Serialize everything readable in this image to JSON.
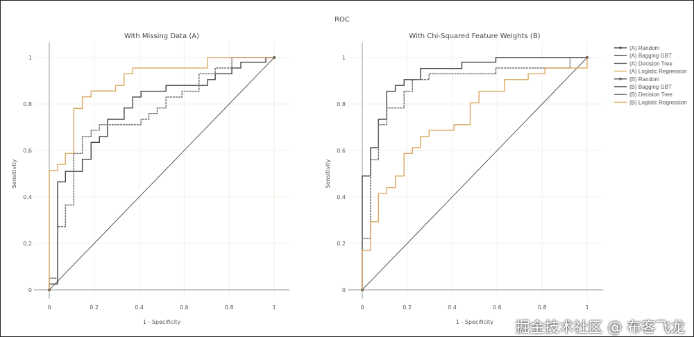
{
  "chart_data": [
    {
      "type": "line",
      "title": "With Missing Data (A)",
      "xlabel": "1 - Specificity",
      "ylabel": "Sensitivity",
      "xlim": [
        0,
        1
      ],
      "ylim": [
        0,
        1
      ],
      "xticks": [
        "0",
        "0.2",
        "0.4",
        "0.6",
        "0.8",
        "1"
      ],
      "yticks": [
        "0",
        "0.2",
        "0.4",
        "0.6",
        "0.8",
        "1"
      ],
      "grid": true,
      "series": [
        {
          "name": "(A) Random",
          "color": "#555555",
          "markers": true,
          "x": [
            0,
            1
          ],
          "y": [
            0,
            1
          ]
        },
        {
          "name": "(A) Bagging GBT",
          "color": "#444444",
          "x": [
            0,
            0.037,
            0.037,
            0.072,
            0.109,
            0.147,
            0.186,
            0.223,
            0.259,
            0.333,
            0.371,
            0.408,
            0.519,
            0.704,
            0.738,
            0.812,
            0.852,
            0.963,
            1
          ],
          "y": [
            0.025,
            0.025,
            0.415,
            0.465,
            0.51,
            0.51,
            0.562,
            0.635,
            0.66,
            0.734,
            0.783,
            0.83,
            0.855,
            0.88,
            0.905,
            0.93,
            0.955,
            0.98,
            1
          ]
        },
        {
          "name": "(A) Decision Tree",
          "color": "#666666",
          "x": [
            0,
            0.037,
            0.037,
            0.072,
            0.109,
            0.147,
            0.186,
            0.223,
            0.408,
            0.443,
            0.48,
            0.519,
            0.59,
            0.666,
            0.738,
            0.812,
            0.924,
            1
          ],
          "y": [
            0.05,
            0.05,
            0.195,
            0.272,
            0.365,
            0.587,
            0.66,
            0.687,
            0.711,
            0.734,
            0.759,
            0.783,
            0.83,
            0.855,
            0.93,
            0.955,
            1,
            1
          ]
        },
        {
          "name": "(A) Logistic Regression",
          "color": "#d9a860",
          "x": [
            0,
            0.037,
            0.072,
            0.109,
            0.147,
            0.186,
            0.295,
            0.333,
            0.371,
            0.704,
            0.852,
            1
          ],
          "y": [
            0.341,
            0.514,
            0.54,
            0.587,
            0.781,
            0.831,
            0.856,
            0.88,
            0.93,
            0.955,
            1,
            1
          ]
        }
      ]
    },
    {
      "type": "line",
      "title": "With Chi-Squared Feature Weights (B)",
      "xlabel": "1 - Specificity",
      "ylabel": "Sensitivity",
      "xlim": [
        0,
        1
      ],
      "ylim": [
        0,
        1
      ],
      "xticks": [
        "0",
        "0.2",
        "0.4",
        "0.6",
        "0.8",
        "1"
      ],
      "yticks": [
        "0",
        "0.2",
        "0.4",
        "0.6",
        "0.8",
        "1"
      ],
      "grid": true,
      "series": [
        {
          "name": "(B) Random",
          "color": "#555555",
          "markers": true,
          "x": [
            0,
            1
          ],
          "y": [
            0,
            1
          ]
        },
        {
          "name": "(B) Bagging GBT",
          "color": "#444444",
          "x": [
            0,
            0.037,
            0.072,
            0.109,
            0.147,
            0.186,
            0.259,
            0.443,
            0.594,
            0.704,
            1
          ],
          "y": [
            0.244,
            0.49,
            0.612,
            0.734,
            0.855,
            0.88,
            0.905,
            0.953,
            0.98,
            1,
            1
          ]
        },
        {
          "name": "(B) Decision Tree",
          "color": "#666666",
          "x": [
            0,
            0.037,
            0.072,
            0.109,
            0.186,
            0.223,
            0.297,
            0.594,
            0.924,
            1
          ],
          "y": [
            0.073,
            0.222,
            0.56,
            0.711,
            0.783,
            0.855,
            0.905,
            0.93,
            0.955,
            1
          ]
        },
        {
          "name": "(B) Logistic Regression",
          "color": "#d9a860",
          "x": [
            0,
            0.037,
            0.072,
            0.109,
            0.147,
            0.186,
            0.223,
            0.259,
            0.297,
            0.408,
            0.48,
            0.519,
            0.632,
            0.738,
            0.812,
            0.89,
            1,
            1
          ],
          "y": [
            0.146,
            0.17,
            0.293,
            0.415,
            0.44,
            0.49,
            0.587,
            0.612,
            0.66,
            0.687,
            0.711,
            0.805,
            0.855,
            0.905,
            0.93,
            0.955,
            0.955,
            1
          ]
        }
      ]
    }
  ],
  "figure_title": "ROC",
  "watermark": "掘金技术社区 @ 布客飞龙"
}
